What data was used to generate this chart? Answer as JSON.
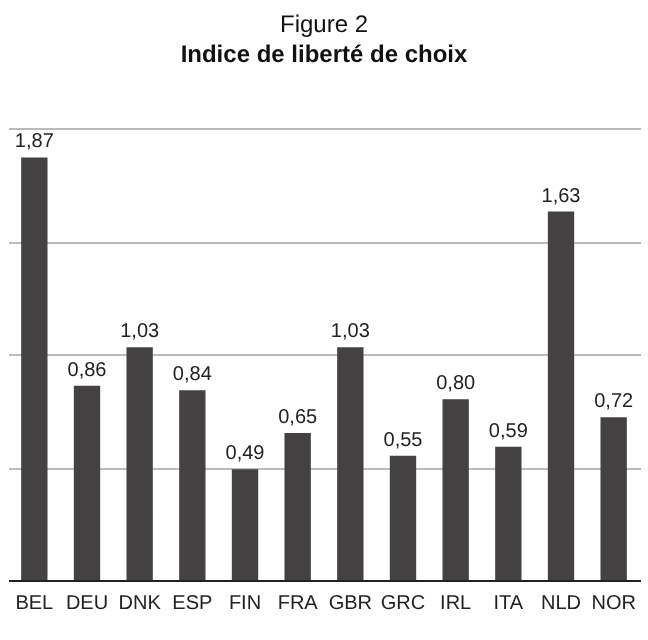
{
  "chart_data": {
    "type": "bar",
    "title": "Figure 2",
    "subtitle": "Indice de liberté de choix",
    "categories": [
      "BEL",
      "DEU",
      "DNK",
      "ESP",
      "FIN",
      "FRA",
      "GBR",
      "GRC",
      "IRL",
      "ITA",
      "NLD",
      "NOR"
    ],
    "values": [
      1.87,
      0.86,
      1.03,
      0.84,
      0.49,
      0.65,
      1.03,
      0.55,
      0.8,
      0.59,
      1.63,
      0.72
    ],
    "value_labels": [
      "1,87",
      "0,86",
      "1,03",
      "0,84",
      "0,49",
      "0,65",
      "1,03",
      "0,55",
      "0,80",
      "0,59",
      "1,63",
      "0,72"
    ],
    "color": "#434142",
    "ylim": [
      0,
      2
    ],
    "yticks": [
      {
        "value": 0,
        "label": null
      },
      {
        "value": 0.5,
        "label": null
      },
      {
        "value": 1,
        "label": null
      },
      {
        "value": 1.5,
        "label": null
      },
      {
        "value": 2,
        "label": null
      }
    ],
    "grid": "y",
    "tick_labels": "x"
  }
}
